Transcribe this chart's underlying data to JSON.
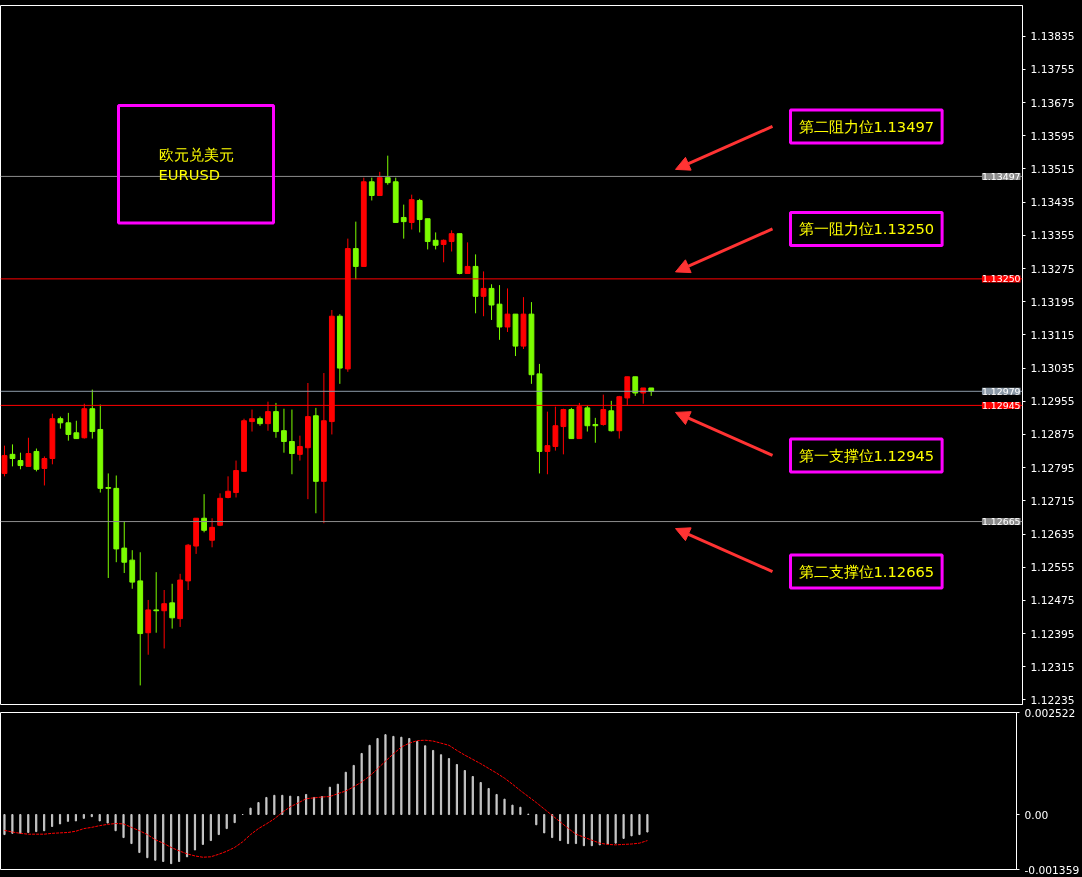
{
  "chart_data": [
    {
      "type": "candlestick",
      "categories": [
        null,
        null,
        null,
        null,
        null,
        null,
        null,
        null,
        null,
        null,
        null,
        null,
        null,
        null,
        null,
        null,
        null,
        null,
        null,
        null,
        null,
        null,
        null,
        null,
        null,
        null,
        null,
        null,
        null,
        null,
        null,
        null,
        null,
        null,
        null,
        null,
        null,
        null,
        null,
        null,
        null,
        null,
        null,
        null,
        null,
        null,
        null,
        null,
        null,
        null,
        null,
        null,
        null,
        null,
        null,
        null,
        null,
        null,
        null,
        null,
        null,
        null,
        null,
        null,
        null,
        null,
        null,
        null,
        null,
        null,
        null,
        null,
        null,
        null,
        null,
        null,
        null,
        null,
        null,
        null,
        null,
        null,
        null,
        null,
        null,
        null,
        null,
        null,
        null,
        null,
        null,
        null,
        null,
        null,
        null,
        null,
        null,
        null,
        null,
        null,
        null,
        null,
        null,
        null,
        null,
        null,
        null,
        null,
        null,
        null,
        null,
        null,
        null,
        null,
        null,
        null,
        null,
        null,
        null,
        null,
        null,
        null,
        null,
        null,
        null,
        null,
        null,
        null
      ],
      "ohlc": [
        [
          1.12781,
          1.12848,
          1.12774,
          1.12824
        ],
        [
          1.12827,
          1.12851,
          1.12798,
          1.12817
        ],
        [
          1.12812,
          1.12831,
          1.12791,
          1.128
        ],
        [
          1.12798,
          1.12867,
          1.12798,
          1.12829
        ],
        [
          1.12834,
          1.12841,
          1.12786,
          1.12791
        ],
        [
          1.12793,
          1.12822,
          1.12752,
          1.12817
        ],
        [
          1.12817,
          1.12925,
          1.12803,
          1.12913
        ],
        [
          1.12913,
          1.12918,
          1.12889,
          1.12903
        ],
        [
          1.12903,
          1.12927,
          1.1286,
          1.12875
        ],
        [
          1.12879,
          1.12908,
          1.12865,
          1.12865
        ],
        [
          1.12867,
          1.12949,
          1.12865,
          1.12937
        ],
        [
          1.12937,
          1.12983,
          1.12865,
          1.12882
        ],
        [
          1.12887,
          1.12947,
          1.12735,
          1.12745
        ],
        [
          1.12747,
          1.12781,
          1.12529,
          1.12745
        ],
        [
          1.12745,
          1.12776,
          1.12567,
          1.12599
        ],
        [
          1.12601,
          1.12666,
          1.12541,
          1.12567
        ],
        [
          1.12572,
          1.12596,
          1.12503,
          1.12519
        ],
        [
          1.12522,
          1.12591,
          1.1227,
          1.12395
        ],
        [
          1.12397,
          1.12476,
          1.12344,
          1.12452
        ],
        [
          1.12452,
          1.12543,
          1.12397,
          1.1245
        ],
        [
          1.1245,
          1.125,
          1.12359,
          1.12467
        ],
        [
          1.12469,
          1.12515,
          1.12407,
          1.12433
        ],
        [
          1.12431,
          1.12539,
          1.12411,
          1.12524
        ],
        [
          1.12522,
          1.12611,
          1.125,
          1.12608
        ],
        [
          1.12606,
          1.12673,
          1.12587,
          1.12673
        ],
        [
          1.12673,
          1.12731,
          1.12639,
          1.12644
        ],
        [
          1.1262,
          1.12673,
          1.12603,
          1.12651
        ],
        [
          1.12656,
          1.12733,
          1.12654,
          1.12721
        ],
        [
          1.12723,
          1.12774,
          1.12721,
          1.12738
        ],
        [
          1.12735,
          1.12812,
          1.12723,
          1.12788
        ],
        [
          1.12786,
          1.12913,
          1.12786,
          1.12908
        ],
        [
          1.12906,
          1.12935,
          1.12882,
          1.12913
        ],
        [
          1.12913,
          1.12918,
          1.12896,
          1.12901
        ],
        [
          1.12901,
          1.12954,
          1.12884,
          1.1293
        ],
        [
          1.1293,
          1.12951,
          1.12867,
          1.12882
        ],
        [
          1.12884,
          1.12937,
          1.12831,
          1.12858
        ],
        [
          1.12858,
          1.12935,
          1.12779,
          1.12829
        ],
        [
          1.12827,
          1.12872,
          1.12812,
          1.12846
        ],
        [
          1.12843,
          1.12999,
          1.12719,
          1.12918
        ],
        [
          1.1292,
          1.12939,
          1.12685,
          1.12762
        ],
        [
          1.12762,
          1.13023,
          1.12661,
          1.12908
        ],
        [
          1.12906,
          1.13175,
          1.12875,
          1.1316
        ],
        [
          1.1316,
          1.13165,
          1.12997,
          1.13035
        ],
        [
          1.13033,
          1.13347,
          1.13026,
          1.13323
        ],
        [
          1.13323,
          1.13388,
          1.13249,
          1.1328
        ],
        [
          1.1328,
          1.13494,
          1.1328,
          1.13484
        ],
        [
          1.13484,
          1.13494,
          1.13439,
          1.13451
        ],
        [
          1.13451,
          1.13508,
          1.13451,
          1.13494
        ],
        [
          1.13494,
          1.13547,
          1.13477,
          1.13482
        ],
        [
          1.13484,
          1.13494,
          1.13386,
          1.13386
        ],
        [
          1.13398,
          1.13429,
          1.13347,
          1.13388
        ],
        [
          1.13386,
          1.13453,
          1.13369,
          1.13441
        ],
        [
          1.13439,
          1.13443,
          1.13362,
          1.13393
        ],
        [
          1.13395,
          1.13395,
          1.13321,
          1.1334
        ],
        [
          1.13343,
          1.13362,
          1.13321,
          1.13331
        ],
        [
          1.13333,
          1.13345,
          1.1329,
          1.13343
        ],
        [
          1.1334,
          1.13367,
          1.13316,
          1.13359
        ],
        [
          1.13359,
          1.13359,
          1.13261,
          1.13263
        ],
        [
          1.13263,
          1.13338,
          1.13263,
          1.1328
        ],
        [
          1.1328,
          1.13309,
          1.13167,
          1.13208
        ],
        [
          1.13208,
          1.13268,
          1.1316,
          1.13227
        ],
        [
          1.13227,
          1.13237,
          1.13151,
          1.13187
        ],
        [
          1.13189,
          1.13235,
          1.13103,
          1.13134
        ],
        [
          1.13134,
          1.13227,
          1.13122,
          1.13165
        ],
        [
          1.13165,
          1.13165,
          1.13064,
          1.13088
        ],
        [
          1.13088,
          1.13206,
          1.13081,
          1.13165
        ],
        [
          1.13165,
          1.13194,
          1.12997,
          1.13019
        ],
        [
          1.13021,
          1.13045,
          1.12781,
          1.12834
        ],
        [
          1.12834,
          1.1293,
          1.12779,
          1.12848
        ],
        [
          1.12846,
          1.12942,
          1.12836,
          1.12896
        ],
        [
          1.12894,
          1.12937,
          1.12827,
          1.12935
        ],
        [
          1.12935,
          1.12939,
          1.12865,
          1.12865
        ],
        [
          1.12865,
          1.12951,
          1.12865,
          1.12942
        ],
        [
          1.12939,
          1.12944,
          1.12882,
          1.12896
        ],
        [
          1.12899,
          1.12915,
          1.12855,
          1.12896
        ],
        [
          1.12899,
          1.12971,
          1.12896,
          1.12935
        ],
        [
          1.12932,
          1.12956,
          1.12882,
          1.12884
        ],
        [
          1.12884,
          1.12968,
          1.12865,
          1.12966
        ],
        [
          1.12963,
          1.13014,
          1.12944,
          1.13014
        ],
        [
          1.13014,
          1.13014,
          1.12968,
          1.12975
        ],
        [
          1.12975,
          1.12987,
          1.12949,
          1.12987
        ],
        [
          1.12987,
          1.12987,
          1.12968,
          1.12979
        ],
        null,
        null,
        null,
        null,
        null,
        null,
        null,
        null,
        null,
        null,
        null,
        null,
        null,
        null,
        null,
        null,
        null,
        null,
        null,
        null,
        null,
        null,
        null,
        null,
        null,
        null,
        null,
        null,
        null,
        null,
        null,
        null,
        null,
        null,
        null,
        null,
        null,
        null,
        null,
        null,
        null,
        null,
        null,
        null,
        null,
        null
      ],
      "colors": [
        "#ff0000",
        "#7cfc00",
        "#7cfc00",
        "#ff0000",
        "#7cfc00",
        "#ff0000",
        "#ff0000",
        "#7cfc00",
        "#7cfc00",
        "#7cfc00",
        "#ff0000",
        "#7cfc00",
        "#7cfc00",
        "#7cfc00",
        "#7cfc00",
        "#7cfc00",
        "#7cfc00",
        "#7cfc00",
        "#ff0000",
        "#7cfc00",
        "#ff0000",
        "#7cfc00",
        "#ff0000",
        "#ff0000",
        "#ff0000",
        "#7cfc00",
        "#ff0000",
        "#ff0000",
        "#ff0000",
        "#ff0000",
        "#ff0000",
        "#ff0000",
        "#7cfc00",
        "#ff0000",
        "#7cfc00",
        "#7cfc00",
        "#7cfc00",
        "#ff0000",
        "#ff0000",
        "#7cfc00",
        "#ff0000",
        "#ff0000",
        "#7cfc00",
        "#ff0000",
        "#7cfc00",
        "#ff0000",
        "#7cfc00",
        "#ff0000",
        "#7cfc00",
        "#7cfc00",
        "#7cfc00",
        "#ff0000",
        "#7cfc00",
        "#7cfc00",
        "#7cfc00",
        "#ff0000",
        "#ff0000",
        "#7cfc00",
        "#ff0000",
        "#7cfc00",
        "#ff0000",
        "#7cfc00",
        "#7cfc00",
        "#ff0000",
        "#7cfc00",
        "#ff0000",
        "#7cfc00",
        "#7cfc00",
        "#ff0000",
        "#ff0000",
        "#ff0000",
        "#7cfc00",
        "#ff0000",
        "#7cfc00",
        "#7cfc00",
        "#ff0000",
        "#7cfc00",
        "#ff0000",
        "#ff0000",
        "#7cfc00",
        "#ff0000",
        "#7cfc00",
        null,
        null,
        null,
        null,
        null,
        null,
        null,
        null,
        null,
        null,
        null,
        null,
        null,
        null,
        null,
        null,
        null,
        null,
        null,
        null,
        null,
        null,
        null,
        null,
        null,
        null,
        null,
        null,
        null,
        null,
        null,
        null,
        null,
        null,
        null,
        null,
        null,
        null,
        null,
        null,
        null,
        null,
        null,
        null,
        null,
        null
      ],
      "ylim": [
        1.12224,
        1.13909
      ],
      "yticks": [
        1.13835,
        1.13755,
        1.13675,
        1.13595,
        1.13515,
        1.13435,
        1.13355,
        1.13275,
        1.13195,
        1.13115,
        1.13035,
        1.12955,
        1.12875,
        1.12795,
        1.12715,
        1.12635,
        1.12555,
        1.12475,
        1.12395,
        1.12315,
        1.12235
      ],
      "tick_labels": "y",
      "ref_lines": [
        {
          "axis": "y",
          "value": 1.13497,
          "label": "第二阻力位1.13497",
          "color": "#8c8c8c"
        },
        {
          "axis": "y",
          "value": 1.1325,
          "label": "第一阻力位1.13250",
          "color": "#ff0000"
        },
        {
          "axis": "y",
          "value": 1.12979,
          "label": null,
          "color": "#8c9aa8"
        },
        {
          "axis": "y",
          "value": 1.12945,
          "label": "第一支撑位1.12945",
          "color": "#ff0000"
        },
        {
          "axis": "y",
          "value": 1.12665,
          "label": "第二支撑位1.12665",
          "color": "#8c8c8c"
        }
      ],
      "annotations": [
        "欧元兑美元\nEURUSD",
        {
          "text": "1.13497",
          "y": 1.13497
        },
        {
          "text": "1.13250",
          "y": 1.1325
        },
        {
          "text": "1.12979",
          "y": 1.12979
        },
        {
          "text": "1.12945",
          "y": 1.12945
        },
        {
          "text": "1.12665",
          "y": 1.12665
        }
      ]
    },
    {
      "type": "bar",
      "categories": [
        null,
        null,
        null,
        null,
        null,
        null,
        null,
        null,
        null,
        null,
        null,
        null,
        null,
        null,
        null,
        null,
        null,
        null,
        null,
        null,
        null,
        null,
        null,
        null,
        null,
        null,
        null,
        null,
        null,
        null,
        null,
        null,
        null,
        null,
        null,
        null,
        null,
        null,
        null,
        null,
        null,
        null,
        null,
        null,
        null,
        null,
        null,
        null,
        null,
        null,
        null,
        null,
        null,
        null,
        null,
        null,
        null,
        null,
        null,
        null,
        null,
        null,
        null,
        null,
        null,
        null,
        null,
        null,
        null,
        null,
        null,
        null,
        null,
        null,
        null,
        null,
        null,
        null,
        null,
        null,
        null,
        null,
        null,
        null,
        null,
        null,
        null,
        null,
        null,
        null,
        null,
        null,
        null,
        null,
        null,
        null,
        null,
        null,
        null,
        null,
        null,
        null,
        null,
        null,
        null,
        null,
        null,
        null,
        null,
        null,
        null,
        null,
        null,
        null,
        null,
        null,
        null,
        null,
        null,
        null,
        null,
        null,
        null,
        null,
        null,
        null,
        null,
        null
      ],
      "series": [
        {
          "type": "bar",
          "color": "#c8c8c8",
          "values": [
            -0.000496,
            -0.000465,
            -0.000465,
            -0.000444,
            -0.000422,
            -0.000401,
            -0.000296,
            -0.000232,
            -0.000169,
            -0.000158,
            -9.5e-05,
            -5.3e-05,
            -0.000158,
            -0.000211,
            -0.000401,
            -0.00057,
            -0.000718,
            -0.00094,
            -0.001067,
            -0.00113,
            -0.001162,
            -0.001214,
            -0.001162,
            -0.001045,
            -0.000876,
            -0.000739,
            -0.000644,
            -0.000496,
            -0.000348,
            -0.000201,
            0,
            0.000158,
            0.000296,
            0.000422,
            0.000475,
            0.000475,
            0.000454,
            0.000444,
            0.000496,
            0.000422,
            0.000444,
            0.000676,
            0.00075,
            0.001045,
            0.001214,
            0.00151,
            0.001711,
            0.00188,
            0.001975,
            0.001932,
            0.001911,
            0.00188,
            0.001806,
            0.0017,
            0.001584,
            0.001478,
            0.001383,
            0.001236,
            0.001088,
            0.00094,
            0.000792,
            0.000644,
            0.000496,
            0.00038,
            0.000232,
            0.00018,
            1e-05,
            -0.000253,
            -0.000454,
            -0.00057,
            -0.000644,
            -0.000718,
            -0.000718,
            -0.000771,
            -0.000771,
            -0.00075,
            -0.000729,
            -0.000708,
            -0.000591,
            -0.000528,
            -0.000496,
            -0.000433,
            null,
            null,
            null,
            null,
            null,
            null,
            null,
            null,
            null,
            null,
            null,
            null,
            null,
            null,
            null,
            null,
            null,
            null,
            null,
            null,
            null,
            null,
            null,
            null,
            null,
            null,
            null,
            null,
            null,
            null,
            null,
            null,
            null,
            null,
            null,
            null,
            null,
            null,
            null,
            null,
            null,
            null,
            null,
            null,
            null,
            null
          ]
        },
        {
          "type": "line",
          "color": "#ff0000",
          "line_style": "dotted",
          "values": [
            -0.000391,
            -0.000433,
            -0.000465,
            -0.000486,
            -0.000486,
            -0.000486,
            -0.000465,
            -0.000454,
            -0.000444,
            -0.000412,
            -0.000348,
            -0.000317,
            -0.000275,
            -0.000243,
            -0.000222,
            -0.000232,
            -0.000317,
            -0.000401,
            -0.000496,
            -0.000623,
            -0.000708,
            -0.000813,
            -0.000898,
            -0.000972,
            -0.001024,
            -0.001056,
            -0.001045,
            -0.000982,
            -0.000908,
            -0.000813,
            -0.000676,
            -0.000496,
            -0.000348,
            -0.000232,
            -0.000106,
            5.3e-05,
            0.00019,
            0.000285,
            0.000391,
            0.000412,
            0.000433,
            0.000444,
            0.000517,
            0.000581,
            0.000686,
            0.000803,
            0.00095,
            0.00113,
            0.00132,
            0.0015,
            0.001668,
            0.001764,
            0.001827,
            0.001837,
            0.001816,
            0.001764,
            0.001711,
            0.001584,
            0.001468,
            0.001362,
            0.001257,
            0.00114,
            0.001024,
            0.000898,
            0.00075,
            0.000591,
            0.000444,
            0.000296,
            0.000137,
            -2.1e-05,
            -0.00018,
            -0.000338,
            -0.000486,
            -0.00056,
            -0.000634,
            -0.000708,
            -0.000739,
            -0.00075,
            -0.000739,
            -0.000729,
            -0.000708,
            -0.000644,
            null,
            null,
            null,
            null,
            null,
            null,
            null,
            null,
            null,
            null,
            null,
            null,
            null,
            null,
            null,
            null,
            null,
            null,
            null,
            null,
            null,
            null,
            null,
            null,
            null,
            null,
            null,
            null,
            null,
            null,
            null,
            null,
            null,
            null,
            null,
            null,
            null,
            null,
            null,
            null,
            null,
            null,
            null,
            null,
            null,
            null
          ]
        }
      ],
      "ylim": [
        -0.001359,
        0.002522
      ],
      "yticks": [
        0.002522,
        {
          "value": 0,
          "label": "0.00"
        },
        -0.001359
      ],
      "tick_labels": "y"
    }
  ]
}
